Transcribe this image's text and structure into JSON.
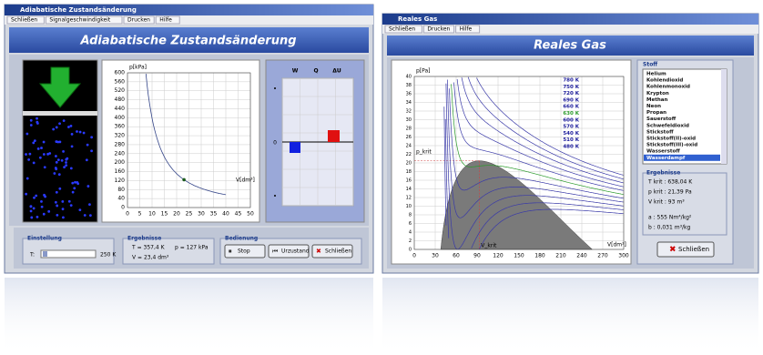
{
  "left_window": {
    "title_bar": "Adiabatische Zustandsänderung",
    "menu": [
      "Schließen",
      "Signalgeschwindigkeit",
      "Drucken",
      "Hilfe"
    ],
    "header": "Adiabatische Zustandsänderung",
    "chart": {
      "y_label": "p[kPa]",
      "yticks": [
        0,
        40,
        80,
        120,
        160,
        200,
        240,
        280,
        320,
        360,
        400,
        440,
        480,
        520,
        560,
        600
      ],
      "x_label": "V[dm³]",
      "xticks": [
        0,
        5,
        10,
        15,
        20,
        25,
        30,
        35,
        40,
        45,
        50
      ]
    },
    "energy_chart": {
      "labels": [
        "W",
        "Q",
        "ΔU"
      ],
      "zero": "0"
    },
    "settings": {
      "title": "Einstellung",
      "label": "T:",
      "value": "250 K"
    },
    "results": {
      "title": "Ergebnisse",
      "lines": [
        "T = 357,4 K",
        "p = 127 kPa",
        "V = 23,4 dm³"
      ]
    },
    "controls": {
      "title": "Bedienung",
      "buttons": [
        "Stop",
        "Urzustand",
        "Schließen"
      ]
    }
  },
  "right_window": {
    "title_bar": "Reales Gas",
    "menu": [
      "Schließen",
      "Drucken",
      "Hilfe"
    ],
    "header": "Reales Gas",
    "chart": {
      "y_label": "p[Pa]",
      "yticks": [
        0,
        2,
        4,
        6,
        8,
        10,
        12,
        14,
        16,
        18,
        20,
        22,
        24,
        26,
        28,
        30,
        32,
        34,
        36,
        38,
        40
      ],
      "x_label": "V[dm³]",
      "xticks": [
        0,
        30,
        60,
        90,
        120,
        150,
        180,
        210,
        240,
        270,
        300
      ],
      "isotherms": [
        "780 K",
        "750 K",
        "720 K",
        "690 K",
        "660 K",
        "630 K",
        "600 K",
        "570 K",
        "540 K",
        "510 K",
        "480 K"
      ],
      "p_crit_label": "p_krit",
      "v_crit_label": "V_krit"
    },
    "substances": {
      "title": "Stoff",
      "items": [
        "Helium",
        "Kohlendioxid",
        "Kohlenmonoxid",
        "Krypton",
        "Methan",
        "Neon",
        "Propan",
        "Sauerstoff",
        "Schwefeldioxid",
        "Stickstoff",
        "Stickstoff(II)-oxid",
        "Stickstoff(III)-oxid",
        "Wasserstoff",
        "Wasserdampf"
      ]
    },
    "results": {
      "title": "Ergebnisse",
      "lines": [
        "T krit : 638,04 K",
        "p krit : 21,39 Pa",
        "V krit : 93 m³",
        "a : 555 Nm⁴/kg²",
        "b : 0,031 m³/kg"
      ]
    },
    "button": "Schließen"
  }
}
